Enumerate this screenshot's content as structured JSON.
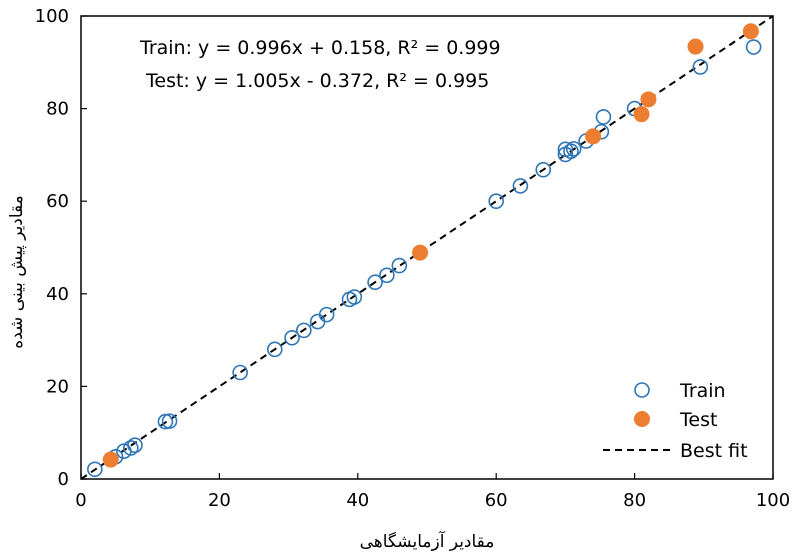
{
  "chart_data": {
    "type": "scatter",
    "xlabel": "مقادیر آزمایشگاهی",
    "ylabel": "مقادیر پیش بینی شده",
    "xlim": [
      0,
      100
    ],
    "ylim": [
      0,
      100
    ],
    "x_ticks": [
      "0",
      "20",
      "40",
      "60",
      "80",
      "100"
    ],
    "y_ticks": [
      "0",
      "20",
      "40",
      "60",
      "80",
      "100"
    ],
    "grid": false,
    "legend_position": "bottom-right",
    "annotations": [
      "Train: y = 0.996x + 0.158, R² = 0.999",
      "Test: y = 1.005x - 0.372, R² = 0.995"
    ],
    "series": [
      {
        "name": "Train",
        "marker": "open-circle",
        "color": "#2E75B6",
        "points": [
          [
            2.0,
            2.1
          ],
          [
            5.0,
            4.8
          ],
          [
            6.2,
            6.0
          ],
          [
            7.2,
            6.7
          ],
          [
            7.8,
            7.3
          ],
          [
            12.2,
            12.4
          ],
          [
            12.8,
            12.5
          ],
          [
            23.0,
            23.0
          ],
          [
            28.0,
            28.0
          ],
          [
            30.5,
            30.5
          ],
          [
            32.2,
            32.1
          ],
          [
            34.2,
            34.0
          ],
          [
            35.5,
            35.5
          ],
          [
            38.8,
            38.8
          ],
          [
            39.5,
            39.3
          ],
          [
            42.5,
            42.5
          ],
          [
            44.2,
            44.0
          ],
          [
            46.0,
            46.1
          ],
          [
            60.0,
            60.0
          ],
          [
            63.5,
            63.3
          ],
          [
            66.8,
            66.8
          ],
          [
            70.0,
            70.1
          ],
          [
            70.0,
            71.2
          ],
          [
            70.8,
            70.8
          ],
          [
            71.2,
            71.3
          ],
          [
            73.0,
            73.0
          ],
          [
            75.2,
            75.0
          ],
          [
            75.5,
            78.2
          ],
          [
            80.0,
            80.0
          ],
          [
            89.5,
            89.0
          ],
          [
            97.2,
            93.3
          ]
        ]
      },
      {
        "name": "Test",
        "marker": "filled-circle",
        "color": "#ED7D31",
        "points": [
          [
            4.3,
            4.2
          ],
          [
            49.0,
            48.9
          ],
          [
            74.0,
            74.0
          ],
          [
            81.0,
            78.8
          ],
          [
            82.0,
            82.0
          ],
          [
            88.8,
            93.4
          ],
          [
            96.8,
            96.7
          ]
        ]
      },
      {
        "name": "Best fit",
        "marker": "dashed-line",
        "color": "#000000",
        "points": [
          [
            0,
            0
          ],
          [
            100,
            100
          ]
        ]
      }
    ]
  }
}
